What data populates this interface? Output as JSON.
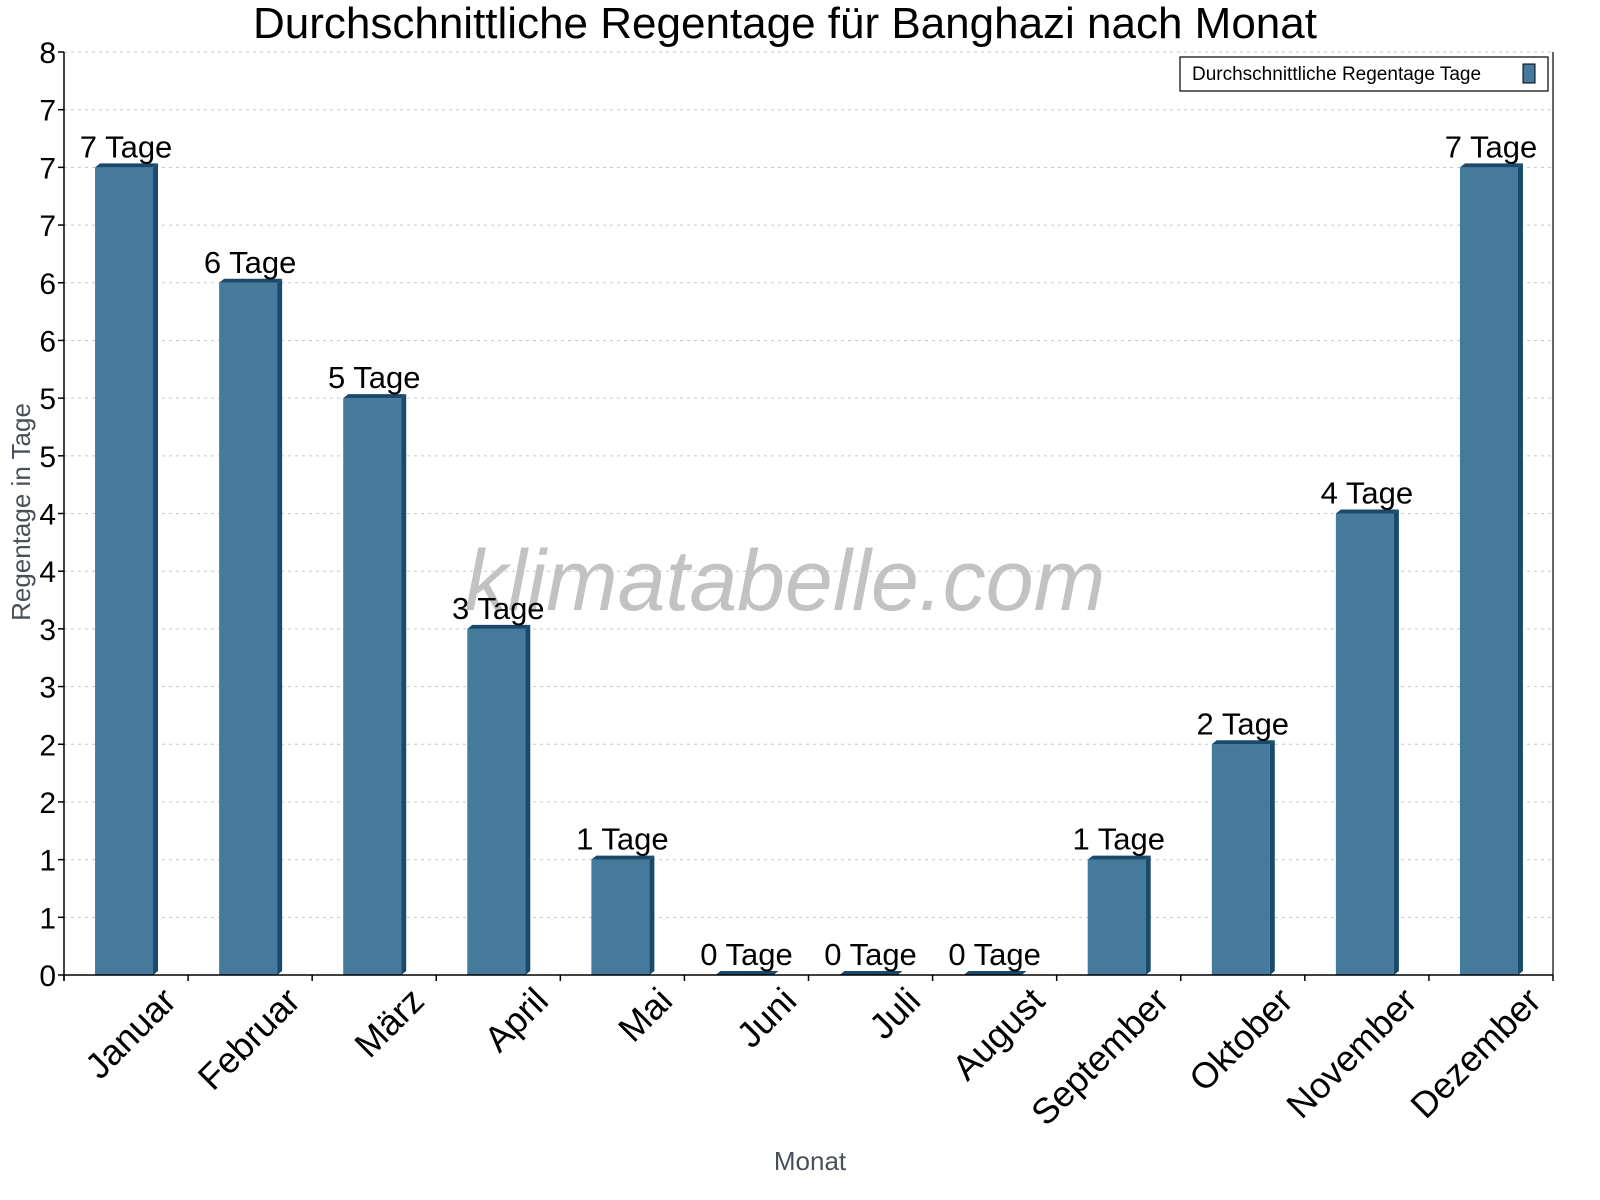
{
  "chart_data": {
    "type": "bar",
    "title": "Durchschnittliche Regentage für Banghazi nach Monat",
    "xlabel": "Monat",
    "ylabel": "Regentage in Tage",
    "categories": [
      "Januar",
      "Februar",
      "März",
      "April",
      "Mai",
      "Juni",
      "Juli",
      "August",
      "September",
      "Oktober",
      "November",
      "Dezember"
    ],
    "series": [
      {
        "name": "Durchschnittliche Regentage Tage",
        "values": [
          7,
          6,
          5,
          3,
          1,
          0,
          0,
          0,
          1,
          2,
          4,
          7
        ],
        "labels": [
          "7 Tage",
          "6 Tage",
          "5 Tage",
          "3 Tage",
          "1 Tage",
          "0 Tage",
          "0 Tage",
          "0 Tage",
          "1 Tage",
          "2 Tage",
          "4 Tage",
          "7 Tage"
        ],
        "color": "#457a9c",
        "side_color": "#1a4a6b"
      }
    ],
    "ylim": [
      0,
      8
    ],
    "ytick_values": [
      0,
      0.5,
      1,
      1.5,
      2,
      2.5,
      3,
      3.5,
      4,
      4.5,
      5,
      5.5,
      6,
      6.5,
      7,
      7.5,
      8
    ],
    "ytick_labels": [
      "0",
      "1",
      "1",
      "2",
      "2",
      "3",
      "3",
      "4",
      "4",
      "5",
      "5",
      "6",
      "6",
      "7",
      "7",
      "7",
      "8"
    ],
    "grid": true,
    "legend_position": "top-right",
    "watermark": "klimatabelle.com"
  }
}
